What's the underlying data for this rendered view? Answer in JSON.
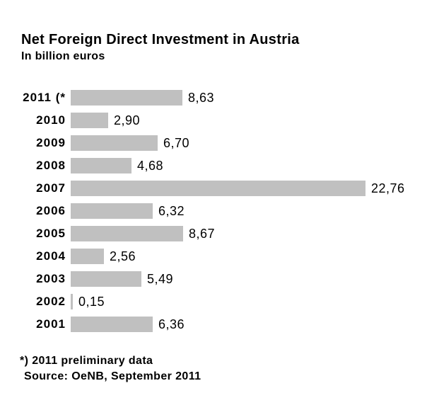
{
  "header": {
    "title": "Net Foreign Direct Investment in Austria",
    "subtitle": "In billion euros"
  },
  "chart_data": {
    "type": "bar",
    "orientation": "horizontal",
    "title": "Net Foreign Direct Investment in Austria",
    "subtitle": "In billion euros",
    "unit": "billion euros",
    "categories": [
      "2011 (*",
      "2010",
      "2009",
      "2008",
      "2007",
      "2006",
      "2005",
      "2004",
      "2003",
      "2002",
      "2001"
    ],
    "values": [
      8.63,
      2.9,
      6.7,
      4.68,
      22.76,
      6.32,
      8.67,
      2.56,
      5.49,
      0.15,
      6.36
    ],
    "value_labels": [
      "8,63",
      "2,90",
      "6,70",
      "4,68",
      "22,76",
      "6,32",
      "8,67",
      "2,56",
      "5,49",
      "0,15",
      "6,36"
    ],
    "xlim": [
      0,
      25
    ],
    "grid": false,
    "legend": false,
    "bar_color": "#c0c0c0",
    "text_color": "#000000",
    "background_color": "#ffffff"
  },
  "footnotes": {
    "asterisk_note": "*) 2011 preliminary data",
    "source_note": "Source: OeNB, September 2011"
  }
}
